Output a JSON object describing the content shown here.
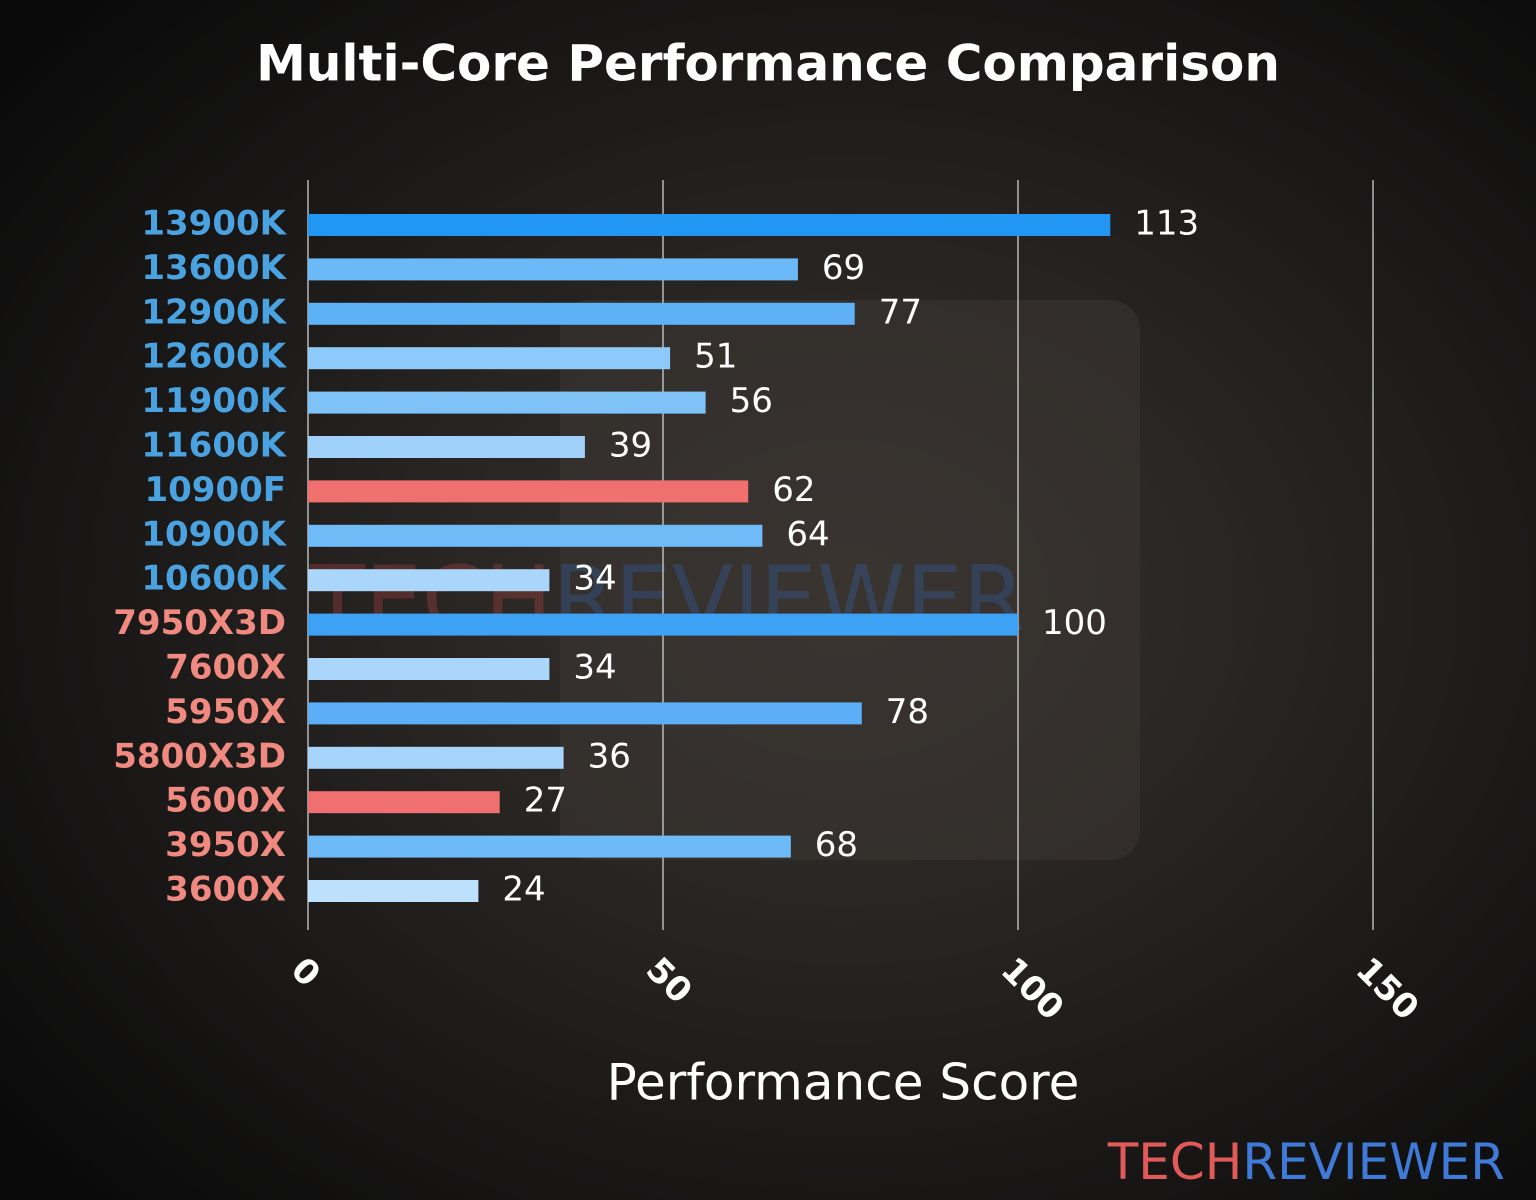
{
  "chart_data": {
    "type": "barh",
    "title": "Multi-Core Performance Comparison",
    "x_label": "Performance Score",
    "categories": [
      "13900K",
      "13600K",
      "12900K",
      "12600K",
      "11900K",
      "11600K",
      "10900F",
      "10900K",
      "10600K",
      "7950X3D",
      "7600X",
      "5950X",
      "5800X3D",
      "5600X",
      "3950X",
      "3600X"
    ],
    "values": [
      113,
      69,
      77,
      51,
      56,
      39,
      62,
      64,
      34,
      100,
      34,
      78,
      36,
      27,
      68,
      24
    ],
    "colors": [
      "#2196f3",
      "#6cb9f7",
      "#5fb1f6",
      "#8ecaf9",
      "#7fc2f8",
      "#9fd1fa",
      "#f07070",
      "#6fbbf7",
      "#aad6fb",
      "#3ea2f4",
      "#aad6fb",
      "#5caff6",
      "#a6d4fb",
      "#f07070",
      "#6dbaf7",
      "#bde0fc"
    ],
    "label_colors": [
      "#4aa3e0",
      "#4aa3e0",
      "#4aa3e0",
      "#4aa3e0",
      "#4aa3e0",
      "#4aa3e0",
      "#4aa3e0",
      "#4aa3e0",
      "#4aa3e0",
      "#f08a80",
      "#f08a80",
      "#f08a80",
      "#f08a80",
      "#f08a80",
      "#f08a80",
      "#f08a80"
    ],
    "xlim": [
      0,
      150
    ],
    "xticks": [
      0,
      50,
      100,
      150
    ],
    "grid": true,
    "watermark": {
      "part1": "TECH",
      "part2": "REVIEWER"
    }
  }
}
